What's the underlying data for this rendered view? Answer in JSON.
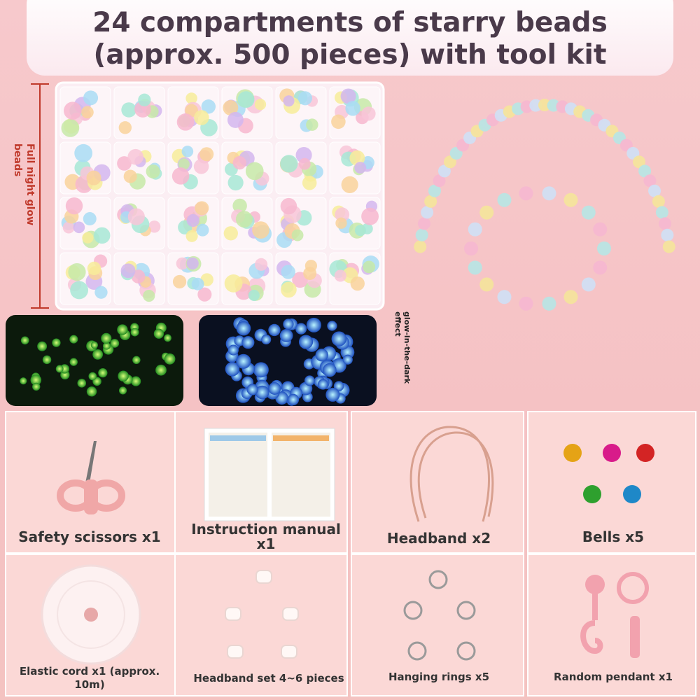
{
  "title": {
    "lines": [
      "24 compartments of starry beads",
      "(approx. 500 pieces) with tool kit"
    ]
  },
  "side_labels": {
    "glow_beads": "Full night glow beads",
    "glow_effect": "glow-in-the-dark effect"
  },
  "items": [
    {
      "label": "Safety scissors x1"
    },
    {
      "label": "Instruction manual x1"
    },
    {
      "label": "Headband x2"
    },
    {
      "label": "Bells x5"
    },
    {
      "label": "Elastic cord x1 (approx. 10m)"
    },
    {
      "label": "Headband set 4~6 pieces"
    },
    {
      "label": "Hanging rings x5"
    },
    {
      "label": "Random pendant x1"
    }
  ]
}
